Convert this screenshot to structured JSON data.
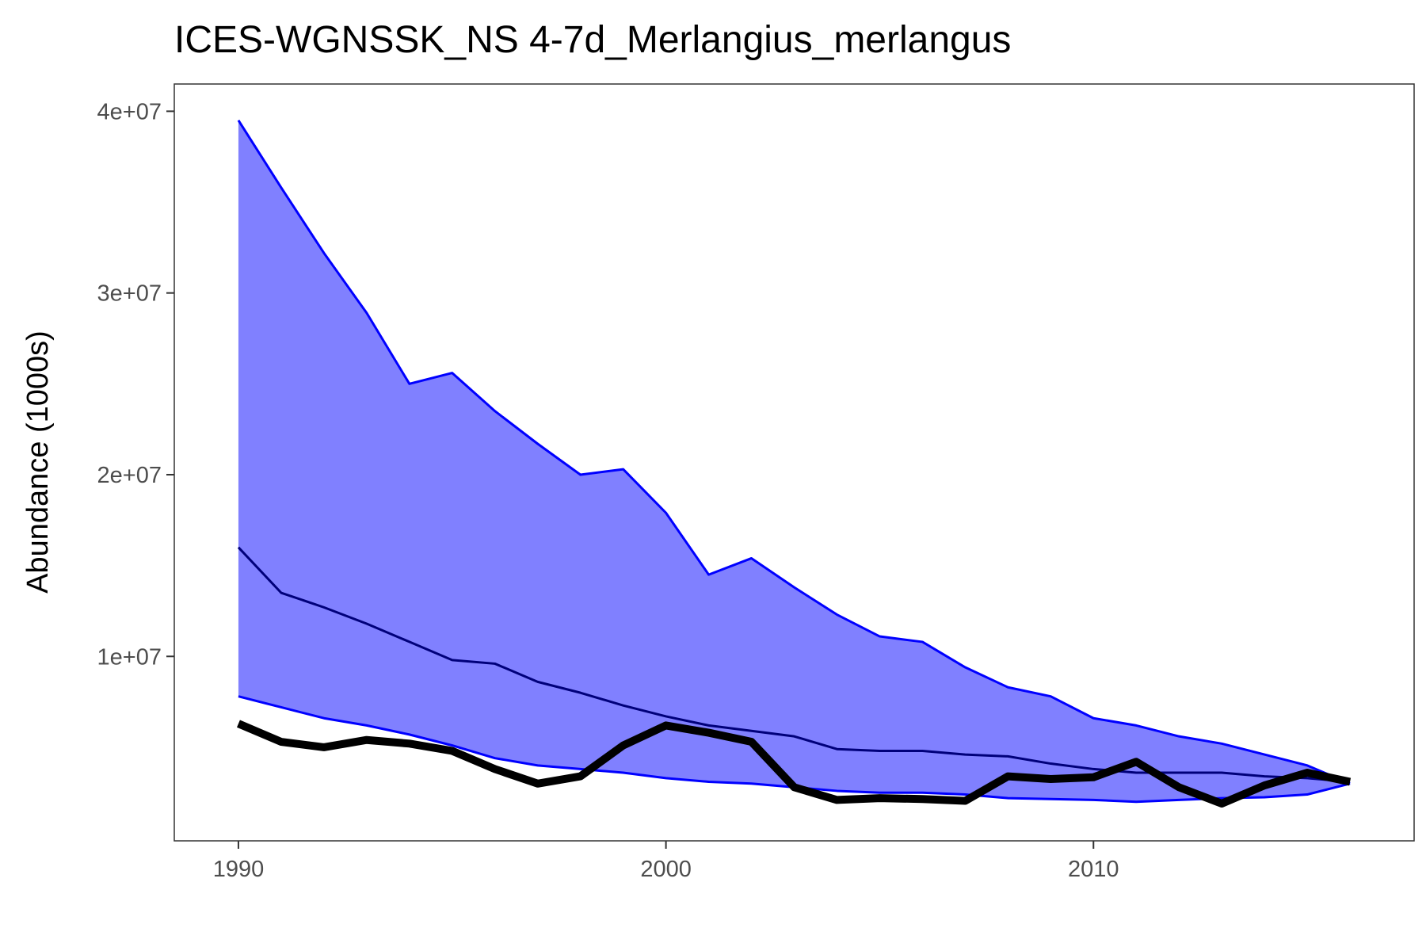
{
  "chart_data": {
    "type": "area",
    "title": "ICES-WGNSSK_NS 4-7d_Merlangius_merlangus",
    "xlabel": "",
    "ylabel": "Abundance (1000s)",
    "xlim": [
      1988.5,
      2017.5
    ],
    "ylim": [
      -150000,
      41500000
    ],
    "x_ticks": [
      1990,
      2000,
      2010
    ],
    "x_tick_labels": [
      "1990",
      "2000",
      "2010"
    ],
    "y_ticks": [
      10000000,
      20000000,
      30000000,
      40000000
    ],
    "y_tick_labels": [
      "1e+07",
      "2e+07",
      "3e+07",
      "4e+07"
    ],
    "grid": false,
    "legend": "none",
    "x": [
      1990,
      1991,
      1992,
      1993,
      1994,
      1995,
      1996,
      1997,
      1998,
      1999,
      2000,
      2001,
      2002,
      2003,
      2004,
      2005,
      2006,
      2007,
      2008,
      2009,
      2010,
      2011,
      2012,
      2013,
      2014,
      2015,
      2016
    ],
    "series": [
      {
        "role": "band-upper",
        "color": "#0000ff",
        "values": [
          39500000,
          35800000,
          32200000,
          28900000,
          25000000,
          25600000,
          23500000,
          21700000,
          20000000,
          20300000,
          17900000,
          14500000,
          15400000,
          13800000,
          12300000,
          11100000,
          10800000,
          9400000,
          8300000,
          7800000,
          6600000,
          6200000,
          5600000,
          5200000,
          4600000,
          4000000,
          3000000
        ]
      },
      {
        "role": "band-lower",
        "color": "#0000ff",
        "values": [
          7800000,
          7200000,
          6600000,
          6200000,
          5700000,
          5100000,
          4400000,
          4000000,
          3800000,
          3600000,
          3300000,
          3100000,
          3000000,
          2800000,
          2600000,
          2500000,
          2500000,
          2400000,
          2200000,
          2150000,
          2100000,
          2000000,
          2100000,
          2200000,
          2250000,
          2400000,
          3000000
        ]
      },
      {
        "role": "median",
        "color": "#00007a",
        "values": [
          16000000,
          13500000,
          12700000,
          11800000,
          10800000,
          9800000,
          9600000,
          8600000,
          8000000,
          7300000,
          6700000,
          6200000,
          5900000,
          5600000,
          4900000,
          4800000,
          4800000,
          4600000,
          4500000,
          4100000,
          3800000,
          3600000,
          3600000,
          3600000,
          3400000,
          3300000,
          3100000
        ]
      },
      {
        "role": "observed",
        "color": "#000000",
        "values": [
          6300000,
          5300000,
          5000000,
          5400000,
          5200000,
          4800000,
          3800000,
          3000000,
          3400000,
          5100000,
          6200000,
          5800000,
          5300000,
          2800000,
          2100000,
          2200000,
          2150000,
          2050000,
          3400000,
          3250000,
          3350000,
          4200000,
          2800000,
          1900000,
          2900000,
          3600000,
          3100000
        ]
      }
    ],
    "band_fill": "#8080ff"
  }
}
